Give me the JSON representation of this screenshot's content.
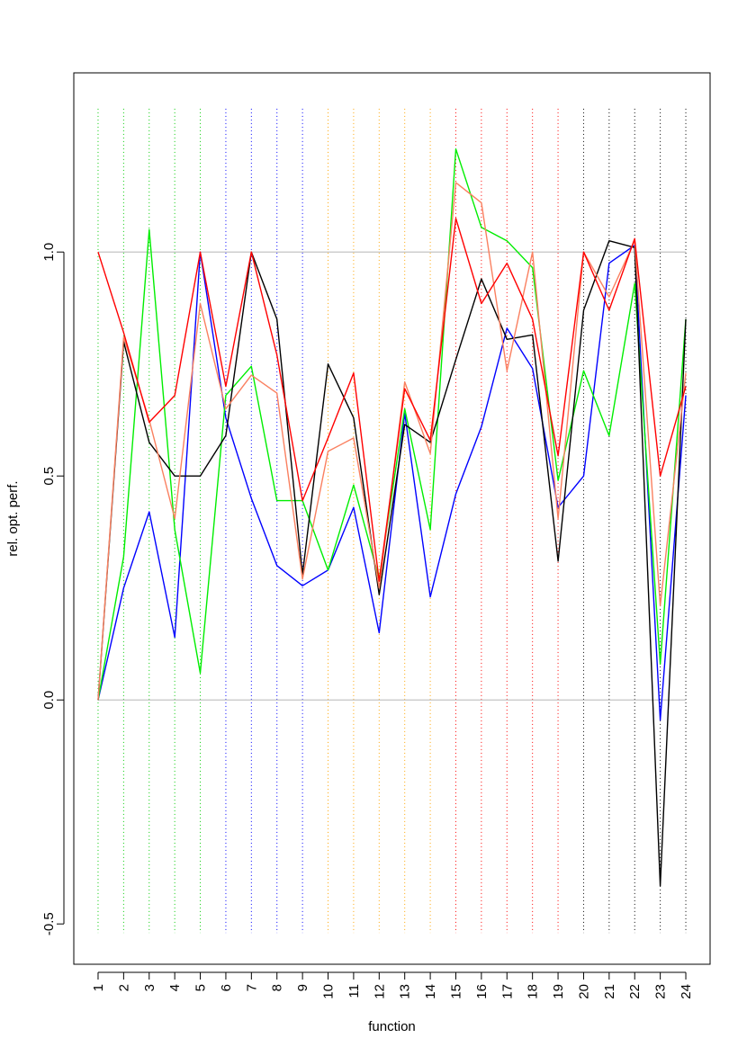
{
  "chart_data": {
    "type": "line",
    "title": "",
    "xlabel": "function",
    "ylabel": "rel. opt. perf.",
    "x": [
      1,
      2,
      3,
      4,
      5,
      6,
      7,
      8,
      9,
      10,
      11,
      12,
      13,
      14,
      15,
      16,
      17,
      18,
      19,
      20,
      21,
      22,
      23,
      24
    ],
    "xlim": [
      0.05,
      24.95
    ],
    "ylim": [
      -0.59,
      1.4
    ],
    "yticks": [
      -0.5,
      0.0,
      0.5,
      1.0
    ],
    "ytick_labels": [
      "-0.5",
      "0.0",
      "0.5",
      "1.0"
    ],
    "reference_lines": [
      0.0,
      1.0
    ],
    "reference_color": "#bebebe",
    "group_lines_top": 1.32,
    "group_lines_bottom": -0.52,
    "group_colors": [
      "#00cc00",
      "#00cc00",
      "#00cc00",
      "#00cc00",
      "#00cc00",
      "#0000ff",
      "#0000ff",
      "#0000ff",
      "#0000ff",
      "#ffa500",
      "#ffa500",
      "#ffa500",
      "#ffa500",
      "#ffa500",
      "#ff0000",
      "#ff0000",
      "#ff0000",
      "#ff0000",
      "#ff0000",
      "#000000",
      "#000000",
      "#000000",
      "#000000",
      "#000000"
    ],
    "series": [
      {
        "color": "#0000ff",
        "values": [
          0.0,
          0.25,
          0.42,
          0.14,
          1.0,
          0.63,
          0.45,
          0.3,
          0.255,
          0.29,
          0.43,
          0.15,
          0.64,
          0.23,
          0.46,
          0.61,
          0.83,
          0.74,
          0.43,
          0.5,
          0.975,
          1.015,
          -0.045,
          0.68
        ]
      },
      {
        "color": "#00ee00",
        "values": [
          0.0,
          0.32,
          1.05,
          0.38,
          0.06,
          0.68,
          0.745,
          0.445,
          0.445,
          0.29,
          0.48,
          0.27,
          0.65,
          0.38,
          1.23,
          1.055,
          1.025,
          0.965,
          0.49,
          0.735,
          0.59,
          0.93,
          0.08,
          0.85
        ]
      },
      {
        "color": "#000000",
        "values": [
          0.0,
          0.8,
          0.575,
          0.5,
          0.5,
          0.59,
          1.0,
          0.85,
          0.28,
          0.75,
          0.63,
          0.235,
          0.615,
          0.575,
          0.76,
          0.94,
          0.805,
          0.815,
          0.31,
          0.87,
          1.025,
          1.01,
          -0.415,
          0.85
        ]
      },
      {
        "color": "#fa8060",
        "values": [
          0.0,
          0.81,
          0.625,
          0.405,
          0.885,
          0.65,
          0.725,
          0.685,
          0.27,
          0.555,
          0.585,
          0.25,
          0.71,
          0.55,
          1.155,
          1.11,
          0.735,
          1.0,
          0.405,
          1.0,
          0.9,
          1.025,
          0.21,
          0.73
        ]
      },
      {
        "color": "#ff0000",
        "values": [
          1.0,
          0.82,
          0.62,
          0.68,
          1.0,
          0.7,
          1.0,
          0.77,
          0.445,
          0.585,
          0.73,
          0.265,
          0.695,
          0.58,
          1.075,
          0.885,
          0.975,
          0.85,
          0.545,
          1.0,
          0.87,
          1.03,
          0.5,
          0.7
        ]
      }
    ]
  }
}
